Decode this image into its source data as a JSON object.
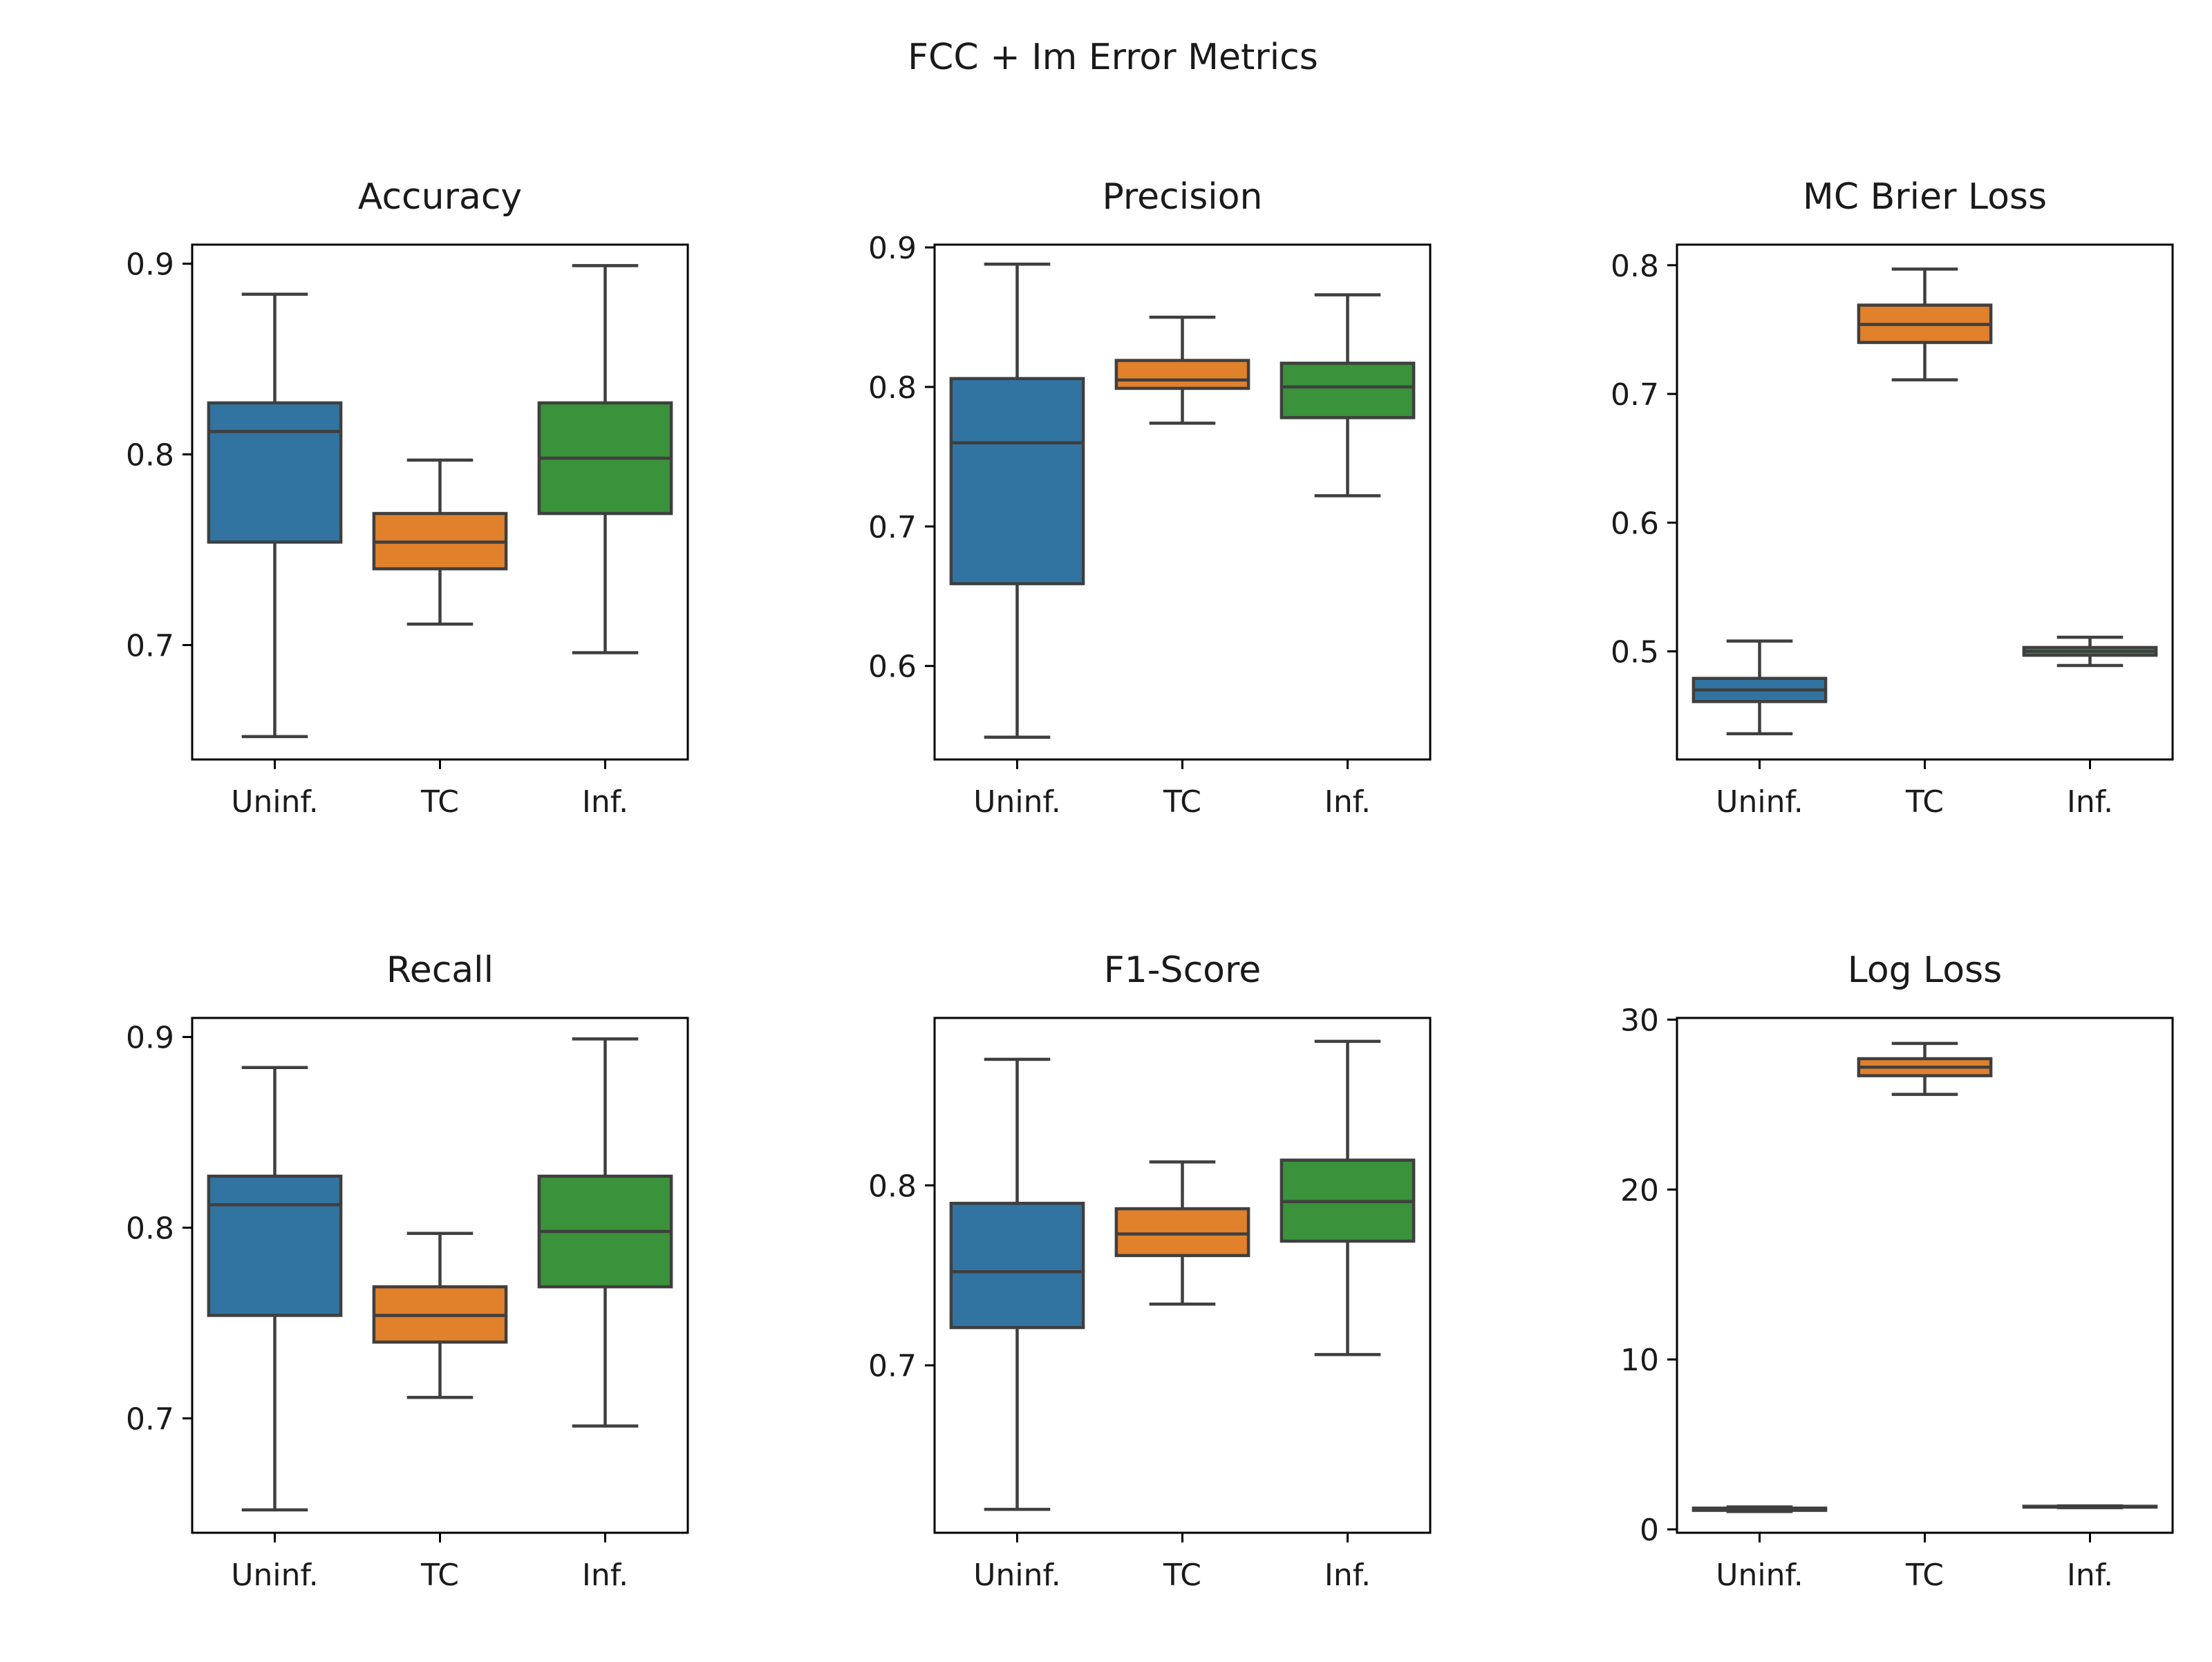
{
  "figure_title": "FCC + Im Error Metrics",
  "chart_data": [
    {
      "type": "box",
      "title": "Accuracy",
      "categories": [
        "Uninf.",
        "TC",
        "Inf."
      ],
      "colors": [
        "#3274a1",
        "#e1812c",
        "#3a923a"
      ],
      "ylim": [
        0.64,
        0.91
      ],
      "yticks": [
        0.7,
        0.8,
        0.9
      ],
      "ytick_labels": [
        "0.7",
        "0.8",
        "0.9"
      ],
      "boxes": [
        {
          "whislo": 0.652,
          "q1": 0.754,
          "med": 0.812,
          "q3": 0.827,
          "whishi": 0.884
        },
        {
          "whislo": 0.711,
          "q1": 0.74,
          "med": 0.754,
          "q3": 0.769,
          "whishi": 0.797
        },
        {
          "whislo": 0.696,
          "q1": 0.769,
          "med": 0.798,
          "q3": 0.827,
          "whishi": 0.899
        }
      ]
    },
    {
      "type": "box",
      "title": "Precision",
      "categories": [
        "Uninf.",
        "TC",
        "Inf."
      ],
      "colors": [
        "#3274a1",
        "#e1812c",
        "#3a923a"
      ],
      "ylim": [
        0.533,
        0.902
      ],
      "yticks": [
        0.6,
        0.7,
        0.8,
        0.9
      ],
      "ytick_labels": [
        "0.6",
        "0.7",
        "0.8",
        "0.9"
      ],
      "boxes": [
        {
          "whislo": 0.549,
          "q1": 0.659,
          "med": 0.76,
          "q3": 0.806,
          "whishi": 0.888
        },
        {
          "whislo": 0.774,
          "q1": 0.799,
          "med": 0.805,
          "q3": 0.819,
          "whishi": 0.85
        },
        {
          "whislo": 0.722,
          "q1": 0.778,
          "med": 0.8,
          "q3": 0.817,
          "whishi": 0.866
        }
      ]
    },
    {
      "type": "box",
      "title": "MC Brier Loss",
      "categories": [
        "Uninf.",
        "TC",
        "Inf."
      ],
      "colors": [
        "#3274a1",
        "#e1812c",
        "#3a923a"
      ],
      "ylim": [
        0.416,
        0.816
      ],
      "yticks": [
        0.5,
        0.6,
        0.7,
        0.8
      ],
      "ytick_labels": [
        "0.5",
        "0.6",
        "0.7",
        "0.8"
      ],
      "boxes": [
        {
          "whislo": 0.436,
          "q1": 0.461,
          "med": 0.47,
          "q3": 0.479,
          "whishi": 0.508
        },
        {
          "whislo": 0.711,
          "q1": 0.74,
          "med": 0.754,
          "q3": 0.769,
          "whishi": 0.797
        },
        {
          "whislo": 0.489,
          "q1": 0.497,
          "med": 0.5,
          "q3": 0.503,
          "whishi": 0.511
        }
      ]
    },
    {
      "type": "box",
      "title": "Recall",
      "categories": [
        "Uninf.",
        "TC",
        "Inf."
      ],
      "colors": [
        "#3274a1",
        "#e1812c",
        "#3a923a"
      ],
      "ylim": [
        0.64,
        0.91
      ],
      "yticks": [
        0.7,
        0.8,
        0.9
      ],
      "ytick_labels": [
        "0.7",
        "0.8",
        "0.9"
      ],
      "boxes": [
        {
          "whislo": 0.652,
          "q1": 0.754,
          "med": 0.812,
          "q3": 0.827,
          "whishi": 0.884
        },
        {
          "whislo": 0.711,
          "q1": 0.74,
          "med": 0.754,
          "q3": 0.769,
          "whishi": 0.797
        },
        {
          "whislo": 0.696,
          "q1": 0.769,
          "med": 0.798,
          "q3": 0.827,
          "whishi": 0.899
        }
      ]
    },
    {
      "type": "box",
      "title": "F1-Score",
      "categories": [
        "Uninf.",
        "TC",
        "Inf."
      ],
      "colors": [
        "#3274a1",
        "#e1812c",
        "#3a923a"
      ],
      "ylim": [
        0.607,
        0.893
      ],
      "yticks": [
        0.7,
        0.8
      ],
      "ytick_labels": [
        "0.7",
        "0.8"
      ],
      "boxes": [
        {
          "whislo": 0.62,
          "q1": 0.721,
          "med": 0.752,
          "q3": 0.79,
          "whishi": 0.87
        },
        {
          "whislo": 0.734,
          "q1": 0.761,
          "med": 0.773,
          "q3": 0.787,
          "whishi": 0.813
        },
        {
          "whislo": 0.706,
          "q1": 0.769,
          "med": 0.791,
          "q3": 0.814,
          "whishi": 0.88
        }
      ]
    },
    {
      "type": "box",
      "title": "Log Loss",
      "categories": [
        "Uninf.",
        "TC",
        "Inf."
      ],
      "colors": [
        "#3274a1",
        "#e1812c",
        "#3a923a"
      ],
      "ylim": [
        -0.2,
        30.1
      ],
      "yticks": [
        0,
        10,
        20,
        30
      ],
      "ytick_labels": [
        "0",
        "10",
        "20",
        "30"
      ],
      "boxes": [
        {
          "whislo": 1.05,
          "q1": 1.12,
          "med": 1.18,
          "q3": 1.25,
          "whishi": 1.32
        },
        {
          "whislo": 25.6,
          "q1": 26.7,
          "med": 27.2,
          "q3": 27.7,
          "whishi": 28.6
        },
        {
          "whislo": 1.28,
          "q1": 1.31,
          "med": 1.33,
          "q3": 1.36,
          "whishi": 1.38
        }
      ]
    }
  ]
}
